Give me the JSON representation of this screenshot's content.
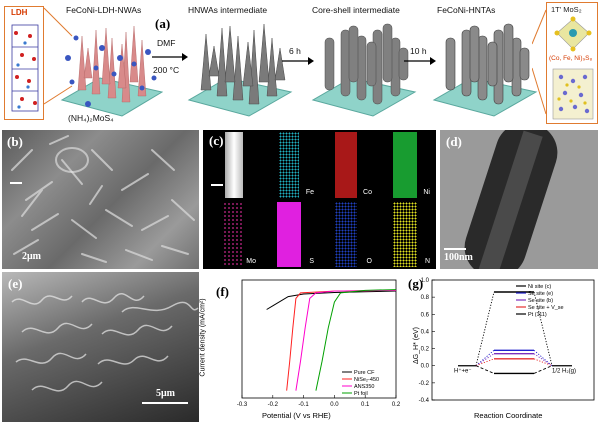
{
  "panel_a": {
    "letter": "(a)",
    "stage_labels": [
      "FeCoNi-LDH-NWAs",
      "HNWAs intermediate",
      "Core-shell intermediate",
      "FeCoNi-HNTAs"
    ],
    "ldh_label": "LDH",
    "reagent": "(NH₄)₂MoS₄",
    "arrow1_top": "DMF",
    "arrow1_bottom": "200 °C",
    "arrow2": "6 h",
    "arrow3": "10 h",
    "right_label_1": "1T' MoS₂",
    "right_label_2": "(Co, Fe, Ni)₉S₈"
  },
  "panel_b": {
    "letter": "(b)",
    "scale": "2μm"
  },
  "panel_c": {
    "letter": "(c)",
    "elements": [
      "",
      "Fe",
      "Co",
      "Ni",
      "Mo",
      "S",
      "O",
      "N"
    ]
  },
  "panel_d": {
    "letter": "(d)",
    "scale": "100nm"
  },
  "panel_e": {
    "letter": "(e)",
    "scale": "5μm"
  },
  "panel_f": {
    "letter": "(f)",
    "chart_data": {
      "type": "line",
      "xlabel": "Potential (V vs RHE)",
      "ylabel": "Current density (mA/cm²)",
      "xlim": [
        -0.3,
        0.2
      ],
      "xticks": [
        "-0.3",
        "-0.2",
        "-0.1",
        "0.0",
        "0.1",
        "0.2"
      ],
      "legend_position": "bottom-right",
      "series": [
        {
          "name": "Pure CF",
          "color": "#000000",
          "x": [
            -0.22,
            -0.2,
            -0.15,
            -0.1,
            0.0,
            0.1,
            0.2
          ],
          "y": [
            0.2,
            0.3,
            0.55,
            0.62,
            0.66,
            0.68,
            0.7
          ]
        },
        {
          "name": "NiSe₂-450",
          "color": "#ff2020",
          "x": [
            -0.155,
            -0.145,
            -0.135,
            -0.125,
            -0.11,
            0.0,
            0.2
          ],
          "y": [
            -2.0,
            -1.2,
            -0.3,
            0.5,
            0.65,
            0.7,
            0.72
          ]
        },
        {
          "name": "ANS350",
          "color": "#ff00cc",
          "x": [
            -0.125,
            -0.11,
            -0.095,
            -0.08,
            -0.06,
            0.0,
            0.2
          ],
          "y": [
            -2.0,
            -1.2,
            -0.3,
            0.5,
            0.65,
            0.7,
            0.72
          ]
        },
        {
          "name": "Pt foil",
          "color": "#00a000",
          "x": [
            -0.06,
            -0.04,
            -0.02,
            0.0,
            0.02,
            0.1,
            0.2
          ],
          "y": [
            -2.0,
            -1.2,
            -0.3,
            0.4,
            0.65,
            0.72,
            0.74
          ]
        }
      ]
    }
  },
  "panel_g": {
    "letter": "(g)",
    "chart_data": {
      "type": "line",
      "xlabel": "Reaction Coordinate",
      "ylabel": "ΔG_H* (eV)",
      "ylim": [
        -0.4,
        1.0
      ],
      "yticks": [
        "1.0",
        "0.8",
        "0.6",
        "0.4",
        "0.2",
        "0.0",
        "-0.2",
        "-0.4"
      ],
      "left_state": "H⁺+e⁻",
      "right_state": "1/2 H₂(g)",
      "legend_position": "top-right",
      "series": [
        {
          "name": "Ni site (c)",
          "color": "#000000",
          "value": 0.86,
          "style": "dotted"
        },
        {
          "name": "Se site (e)",
          "color": "#2222cc",
          "value": 0.18,
          "style": "dotted"
        },
        {
          "name": "Se site (b)",
          "color": "#7b2fbe",
          "value": 0.14,
          "style": "dotted"
        },
        {
          "name": "Se site + V_se",
          "color": "#e63030",
          "value": 0.08,
          "style": "dotted"
        },
        {
          "name": "Pt (111)",
          "color": "#000000",
          "value": -0.09,
          "style": "dashed"
        }
      ]
    }
  }
}
